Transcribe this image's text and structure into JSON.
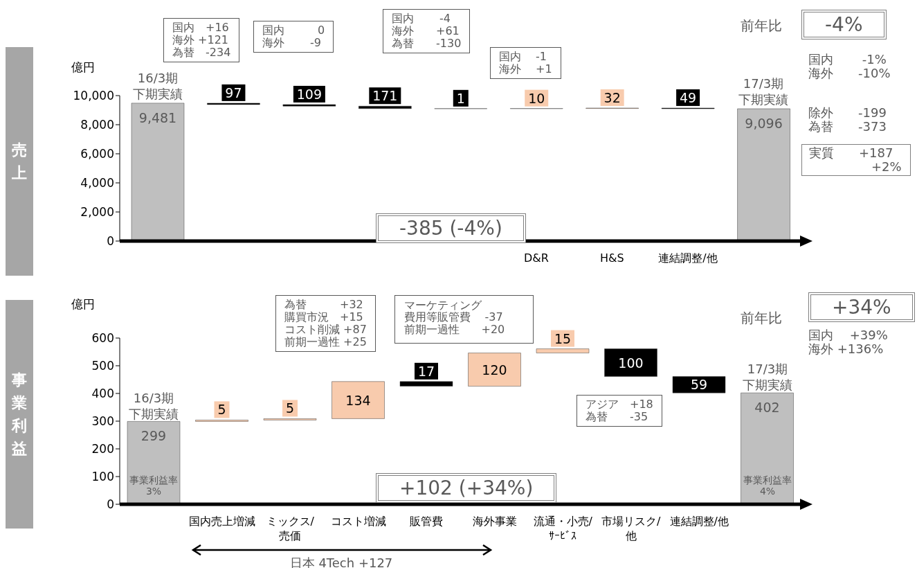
{
  "chart_data": [
    {
      "type": "bar",
      "title": "売上",
      "ylabel": "億円",
      "categories": [
        null,
        null,
        null,
        null,
        null,
        "D&R",
        "H&S",
        "連結調整/他",
        null
      ],
      "values": [
        9481,
        -97,
        -109,
        -171,
        -1,
        10,
        32,
        -49,
        9096
      ],
      "base": [
        0,
        9481,
        9384,
        9275,
        9104,
        9103,
        9113,
        9145,
        0
      ],
      "colors": [
        "#bfbfbf",
        "#000000",
        "#000000",
        "#000000",
        "#000000",
        "#f8cbad",
        "#f8cbad",
        "#000000",
        "#bfbfbf"
      ],
      "value_labels": [
        "9,481",
        "97",
        "109",
        "171",
        "1",
        "10",
        "32",
        "49",
        "9,096"
      ],
      "ylim": [
        0,
        10000
      ],
      "yticks": [
        0,
        {
          "value": 2000,
          "label": "2,000"
        },
        {
          "value": 4000,
          "label": "4,000"
        },
        {
          "value": 6000,
          "label": "6,000"
        },
        {
          "value": 8000,
          "label": "8,000"
        },
        {
          "value": 10000,
          "label": "10,000"
        }
      ],
      "annotations": [
        "国内　+16\n海外 +121\n為替　-234",
        "国内　　　0\n海外　　 -9",
        "国内　　 -4\n海外　　+61\n為替　　-130",
        "国内　 -1\n海外　 +1",
        "前年比",
        "-4%",
        "国内　　 -1%\n海外　　-10%",
        "除外　　-199\n為替　　-373",
        "実質　　+187\n　　　　　+2%",
        "-385 (-4%)",
        "16/3期",
        "下期実績",
        "17/3期",
        "下期実績"
      ]
    },
    {
      "type": "bar",
      "title": "事業利益",
      "ylabel": "億円",
      "categories": [
        null,
        "国内売上増減",
        "ミックス/売価",
        "コスト増減",
        "販管費",
        "海外事業",
        "流通・小売/ｻｰﾋﾞｽ",
        "市場リスク/他",
        "連結調整/他",
        null
      ],
      "values": [
        299,
        5,
        5,
        134,
        -17,
        120,
        15,
        -100,
        -59,
        402
      ],
      "base": [
        0,
        299,
        304,
        309,
        443,
        426,
        546,
        561,
        461,
        0
      ],
      "colors": [
        "#bfbfbf",
        "#f8cbad",
        "#f8cbad",
        "#f8cbad",
        "#000000",
        "#f8cbad",
        "#f8cbad",
        "#000000",
        "#000000",
        "#bfbfbf"
      ],
      "value_labels": [
        "299",
        "5",
        "5",
        "134",
        "17",
        "120",
        "15",
        "100",
        "59",
        "402"
      ],
      "ylim": [
        0,
        600
      ],
      "yticks": [
        0,
        100,
        200,
        300,
        400,
        500,
        600
      ],
      "annotations": [
        "為替　　　+32\n購買市況　+15\nコスト削減 +87\n前期一過性 +25",
        "マーケティング",
        "費用等販管費　 -37\n前期一過性　　+20",
        "アジア　+18\n為替　　-35",
        "前年比",
        "+34%",
        "国内　 +39%\n海外 +136%",
        "+102 (+34%)",
        "日本 4Tech +127",
        "事業利益率\n3%",
        "事業利益率\n4%",
        "16/3期",
        "下期実績",
        "17/3期",
        "下期実績"
      ]
    }
  ]
}
